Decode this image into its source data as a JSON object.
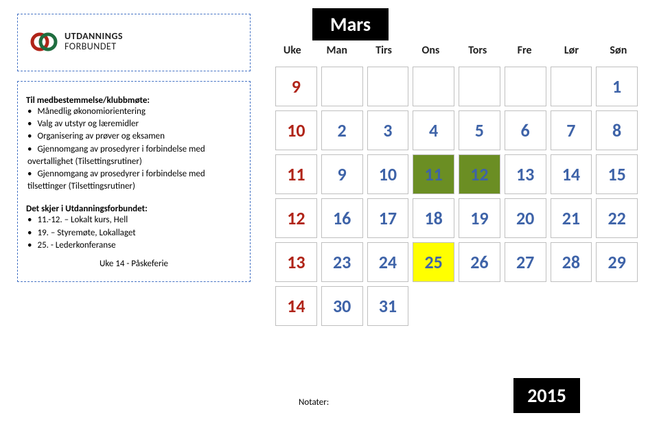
{
  "month_title": "Mars",
  "year": "2015",
  "logo": {
    "line1": "UTDANNINGS",
    "line2": "FORBUNDET"
  },
  "sidebar": {
    "section1": {
      "title": "Til medbestemmelse/klubbmøte:",
      "items": [
        "Månedlig økonomiorientering",
        "Valg av utstyr og læremidler",
        "Organisering av prøver og eksamen",
        "Gjennomgang av prosedyrer i forbindelse med overtallighet (Tilsettingsrutiner)",
        "Gjennomgang av prosedyrer i forbindelse med tilsettinger (Tilsettingsrutiner)"
      ]
    },
    "section2": {
      "title": "Det skjer i Utdanningsforbundet:",
      "items": [
        "11.-12. – Lokalt kurs, Hell",
        "19. – Styremøte, Lokallaget",
        "25. - Lederkonferanse"
      ]
    },
    "note": "Uke 14 - Påskeferie"
  },
  "calendar": {
    "headers": [
      "Uke",
      "Man",
      "Tirs",
      "Ons",
      "Tors",
      "Fre",
      "Lør",
      "Søn"
    ],
    "rows": [
      {
        "wk": "9",
        "d": [
          "",
          "",
          "",
          "",
          "",
          "",
          "1"
        ],
        "hl": {}
      },
      {
        "wk": "10",
        "d": [
          "2",
          "3",
          "4",
          "5",
          "6",
          "7",
          "8"
        ],
        "hl": {}
      },
      {
        "wk": "11",
        "d": [
          "9",
          "10",
          "11",
          "12",
          "13",
          "14",
          "15"
        ],
        "hl": {
          "2": "green",
          "3": "green"
        }
      },
      {
        "wk": "12",
        "d": [
          "16",
          "17",
          "18",
          "19",
          "20",
          "21",
          "22"
        ],
        "hl": {}
      },
      {
        "wk": "13",
        "d": [
          "23",
          "24",
          "25",
          "26",
          "27",
          "28",
          "29"
        ],
        "hl": {
          "2": "yellow"
        }
      },
      {
        "wk": "14",
        "d": [
          "30",
          "31",
          "",
          "",
          "",
          "",
          ""
        ],
        "hl": {}
      }
    ]
  },
  "notater_label": "Notater:",
  "colors": {
    "dash_border": "#4472c4",
    "week_color": "#b02418",
    "day_color": "#3e63a8",
    "cell_border": "#bfbfbf",
    "hl_green": "#6b8e23",
    "hl_yellow": "#ffff00",
    "badge_bg": "#000000",
    "badge_fg": "#ffffff"
  }
}
